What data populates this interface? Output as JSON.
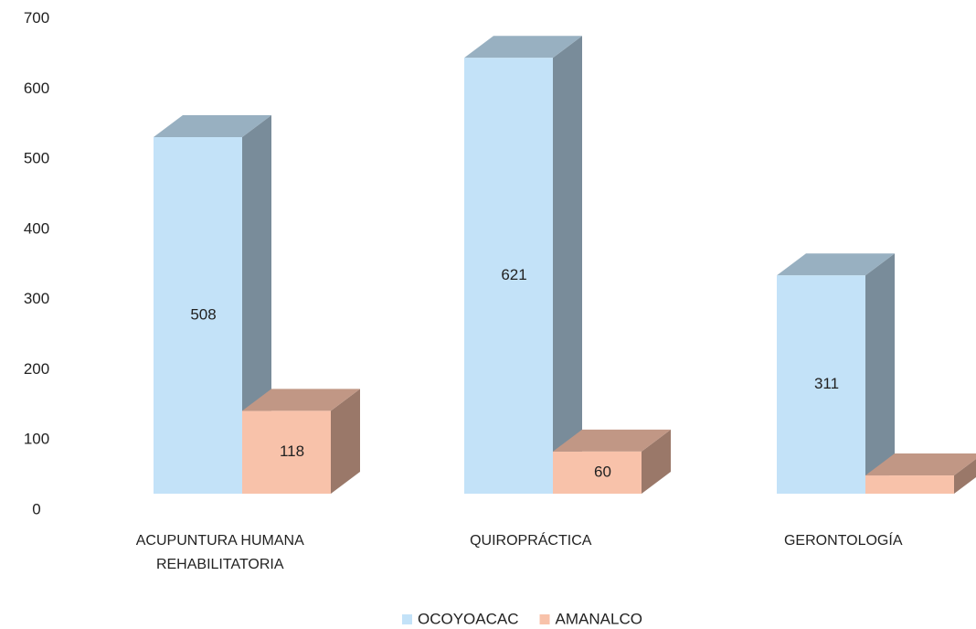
{
  "chart_data": {
    "type": "bar3d",
    "categories": [
      "ACUPUNTURA HUMANA REHABILITATORIA",
      "QUIROPRÁCTICA",
      "GERONTOLOGÍA"
    ],
    "series": [
      {
        "name": "OCOYOACAC",
        "color": "#c3e2f8",
        "values": [
          508,
          621,
          311
        ]
      },
      {
        "name": "AMANALCO",
        "color": "#f8c2aa",
        "values": [
          118,
          60,
          26
        ]
      }
    ],
    "ylim": [
      0,
      700
    ],
    "yticks": [
      0,
      100,
      200,
      300,
      400,
      500,
      600,
      700
    ],
    "grid": false,
    "legend": "bottom"
  }
}
